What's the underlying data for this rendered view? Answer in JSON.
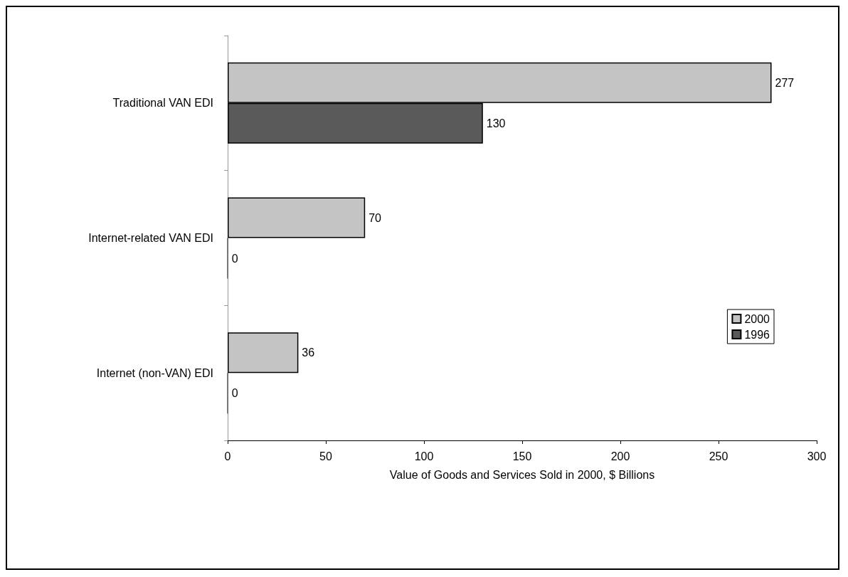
{
  "chart_data": {
    "type": "bar",
    "orientation": "horizontal",
    "categories": [
      "Traditional VAN EDI",
      "Internet-related VAN EDI",
      "Internet (non-VAN) EDI"
    ],
    "series": [
      {
        "name": "2000",
        "color": "#c4c4c4",
        "values": [
          277,
          70,
          36
        ]
      },
      {
        "name": "1996",
        "color": "#5a5a5a",
        "values": [
          130,
          0,
          0
        ]
      }
    ],
    "xlabel": "Value of Goods and Services Sold in 2000, $ Billions",
    "xlim": [
      0,
      300
    ],
    "xticks": [
      0,
      50,
      100,
      150,
      200,
      250,
      300
    ],
    "data_labels": true,
    "grid": false,
    "legend": "right"
  }
}
